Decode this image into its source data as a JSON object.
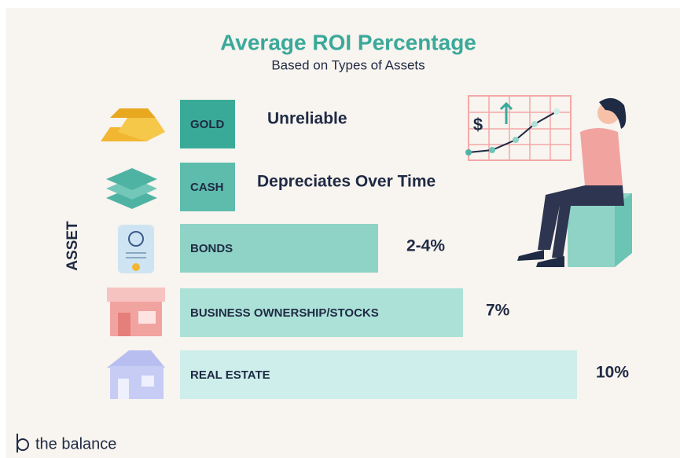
{
  "header": {
    "title": "Average ROI Percentage",
    "subtitle": "Based on Types of Assets"
  },
  "axis_label": "ASSET",
  "rows": [
    {
      "asset": "GOLD",
      "roi": "Unreliable"
    },
    {
      "asset": "CASH",
      "roi": "Depreciates Over Time"
    },
    {
      "asset": "BONDS",
      "roi": "2-4%"
    },
    {
      "asset": "BUSINESS OWNERSHIP/STOCKS",
      "roi": "7%"
    },
    {
      "asset": "REAL ESTATE",
      "roi": "10%"
    }
  ],
  "graph_symbol": "$",
  "logo": "the balance"
}
